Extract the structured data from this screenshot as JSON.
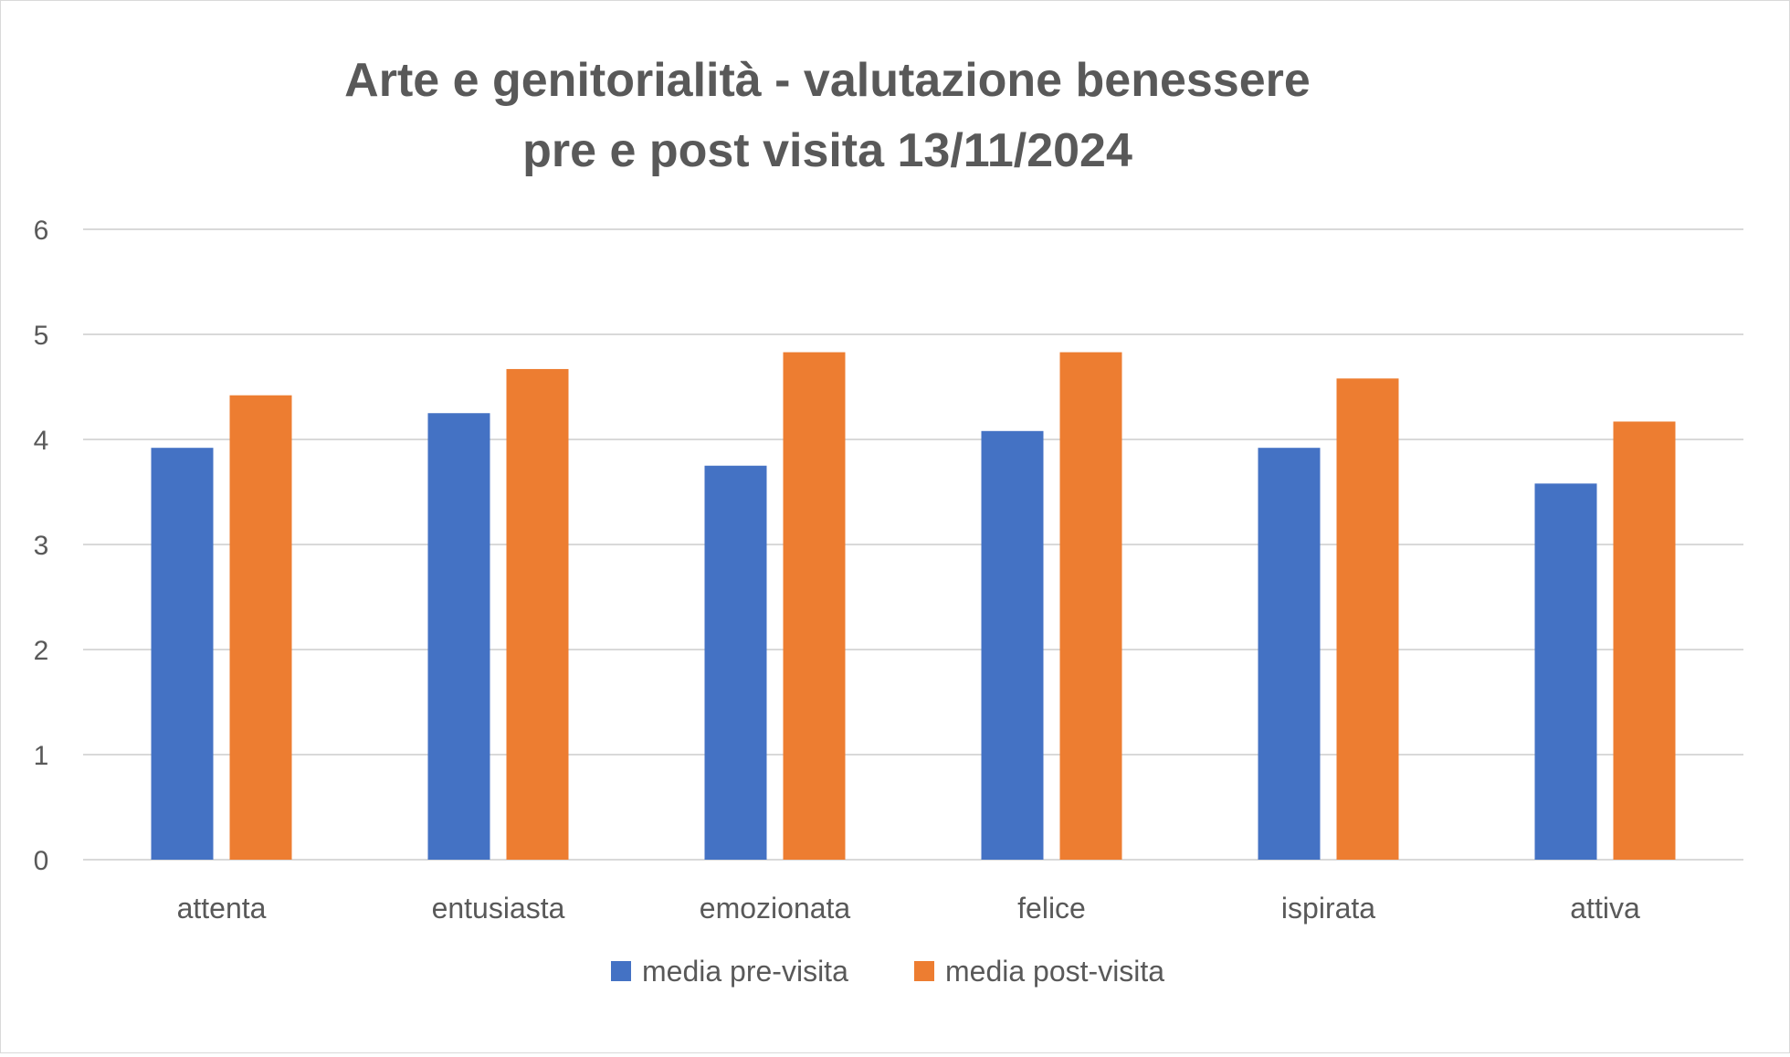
{
  "chart_data": {
    "type": "bar",
    "title_lines": [
      "Arte e genitorialità - valutazione benessere",
      "pre e post visita 13/11/2024"
    ],
    "categories": [
      "attenta",
      "entusiasta",
      "emozionata",
      "felice",
      "ispirata",
      "attiva"
    ],
    "series": [
      {
        "name": "media pre-visita",
        "color": "#4472C4",
        "values": [
          3.92,
          4.25,
          3.75,
          4.08,
          3.92,
          3.58
        ]
      },
      {
        "name": "media post-visita",
        "color": "#ED7D31",
        "values": [
          4.42,
          4.67,
          4.83,
          4.83,
          4.58,
          4.17
        ]
      }
    ],
    "ylim": [
      0,
      6
    ],
    "yticks": [
      "0",
      "1",
      "2",
      "3",
      "4",
      "5",
      "6"
    ],
    "xlabel": "",
    "ylabel": "",
    "grid": true,
    "legend_position": "bottom"
  }
}
